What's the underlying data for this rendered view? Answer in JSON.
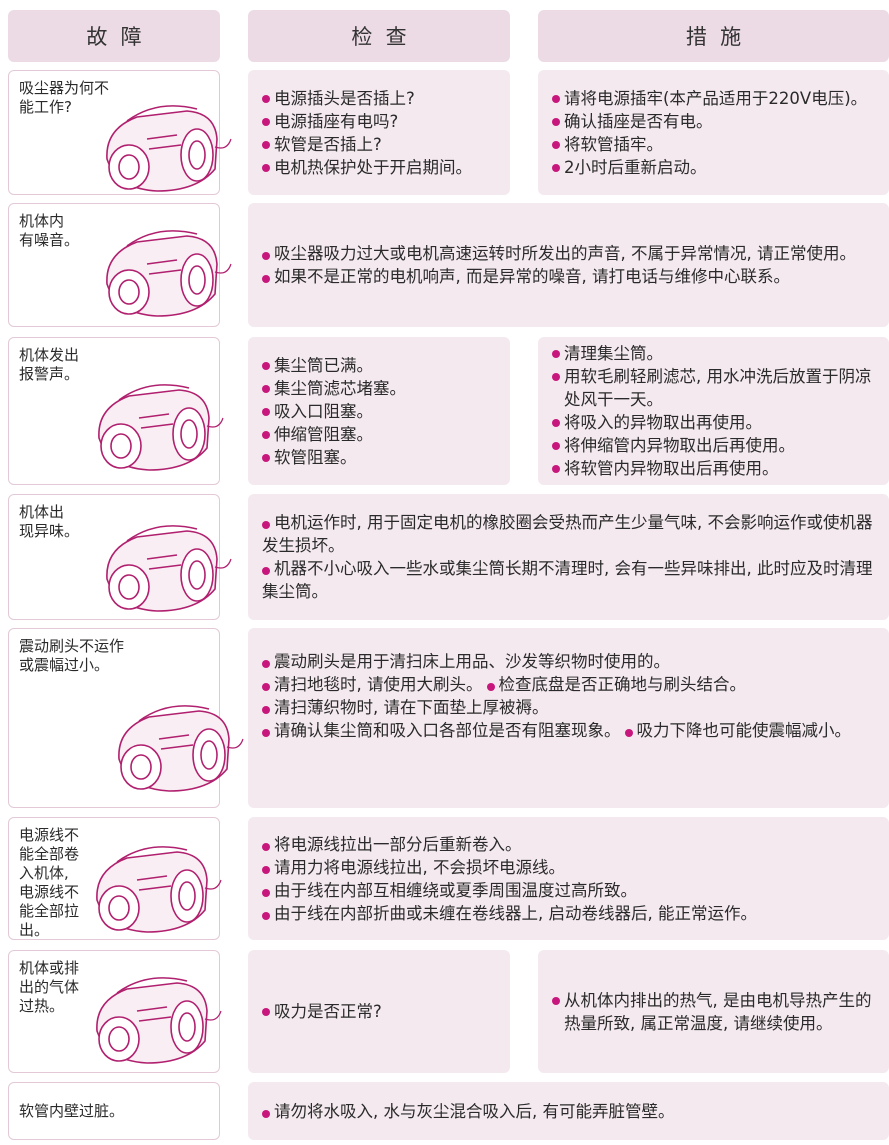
{
  "header": {
    "fault": "故  障",
    "check": "检  查",
    "measure": "措  施"
  },
  "rows": [
    {
      "fault": [
        "吸尘器为何不",
        "能工作?"
      ],
      "check": [
        "电源插头是否插上?",
        "电源插座有电吗?",
        "软管是否插上?",
        "电机热保护处于开启期间。"
      ],
      "measure": [
        "请将电源插牢(本产品适用于220V电压)。",
        "确认插座是否有电。",
        "将软管插牢。",
        "2小时后重新启动。"
      ]
    },
    {
      "fault": [
        "机体内",
        "有噪音。"
      ],
      "combined": [
        "吸尘器吸力过大或电机高速运转时所发出的声音, 不属于异常情况, 请正常使用。",
        "如果不是正常的电机响声, 而是异常的噪音, 请打电话与维修中心联系。"
      ]
    },
    {
      "fault": [
        "机体发出",
        "报警声。"
      ],
      "check": [
        "集尘筒已满。",
        "集尘筒滤芯堵塞。",
        "吸入口阻塞。",
        "伸缩管阻塞。",
        "软管阻塞。"
      ],
      "measure": [
        "清理集尘筒。",
        "用软毛刷轻刷滤芯, 用水冲洗后放置于阴凉处风干一天。",
        "将吸入的异物取出再使用。",
        "将伸缩管内异物取出后再使用。",
        "将软管内异物取出后再使用。"
      ]
    },
    {
      "fault": [
        "机体出",
        "现异味。"
      ],
      "combined": [
        "电机运作时, 用于固定电机的橡胶圈会受热而产生少量气味, 不会影响运作或使机器发生损坏。",
        "机器不小心吸入一些水或集尘筒长期不清理时, 会有一些异味排出, 此时应及时清理集尘筒。"
      ]
    },
    {
      "fault": [
        "震动刷头不运作",
        "或震幅过小。"
      ],
      "combined": [
        "震动刷头是用于清扫床上用品、沙发等织物时使用的。",
        "清扫地毯时, 请使用大刷头。",
        "检查底盘是否正确地与刷头结合。",
        "清扫薄织物时, 请在下面垫上厚被褥。",
        "请确认集尘筒和吸入口各部位是否有阻塞现象。",
        "吸力下降也可能使震幅减小。"
      ]
    },
    {
      "fault": [
        "电源线不",
        "能全部卷",
        "入机体,",
        "电源线不",
        "能全部拉",
        "出。"
      ],
      "combined": [
        "将电源线拉出一部分后重新卷入。",
        "请用力将电源线拉出, 不会损坏电源线。",
        "由于线在内部互相缠绕或夏季周围温度过高所致。",
        "由于线在内部折曲或未缠在卷线器上, 启动卷线器后, 能正常运作。"
      ]
    },
    {
      "fault": [
        "机体或排",
        "出的气体",
        "过热。"
      ],
      "check": [
        "吸力是否正常?"
      ],
      "measure": [
        "从机体内排出的热气, 是由电机导热产生的热量所致, 属正常温度, 请继续使用。"
      ]
    },
    {
      "fault": [
        "软管内壁过脏。"
      ],
      "combined": [
        "请勿将水吸入, 水与灰尘混合吸入后, 有可能弄脏管壁。"
      ]
    }
  ]
}
